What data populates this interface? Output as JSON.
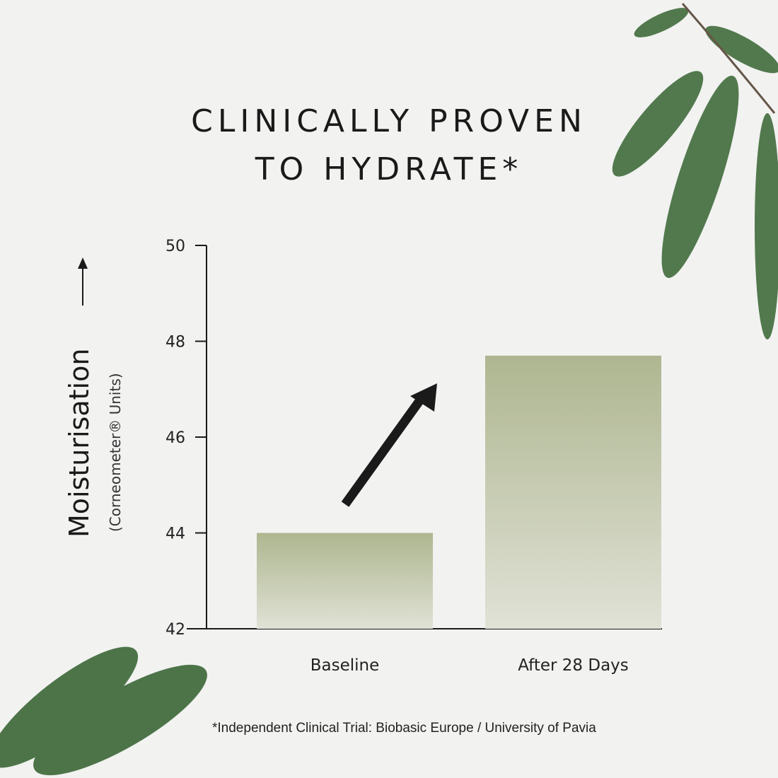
{
  "chart_data": {
    "type": "bar",
    "title": "CLINICALLY PROVEN TO HYDRATE*",
    "title_lines": [
      "CLINICALLY PROVEN",
      "TO HYDRATE*"
    ],
    "categories": [
      "Baseline",
      "After 28 Days"
    ],
    "values": [
      44.0,
      47.7
    ],
    "ylabel": "Moisturisation",
    "ylabel_sub": "(Corneometer® Units)",
    "xlabel": "",
    "ylim": [
      42,
      50
    ],
    "yticks": [
      "42",
      "44",
      "46",
      "48",
      "50"
    ],
    "grid": false,
    "bar_color_top": "#aeb690",
    "bar_color_bottom": "#e0e2d6",
    "annotation": "upward trend arrow",
    "footnote": "*Independent Clinical Trial: Biobasic Europe / University of Pavia"
  },
  "decor": {
    "leaf_color": "#3f6a3a",
    "icons": [
      "olive-leaf-icon",
      "arrow-up-icon",
      "trend-arrow-icon"
    ]
  }
}
